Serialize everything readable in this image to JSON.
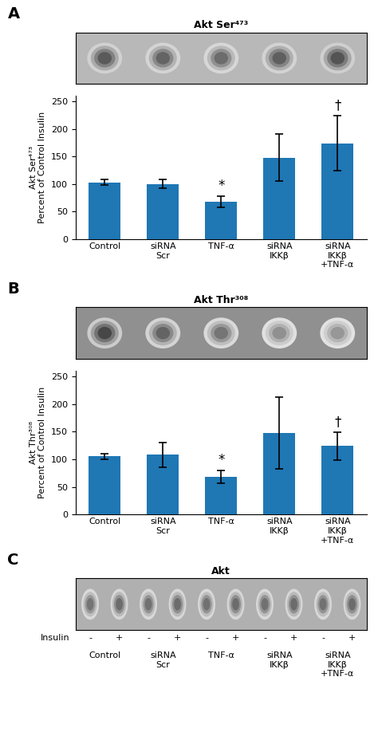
{
  "chart_data": [
    {
      "type": "blot",
      "panel_label": "A",
      "title": "Akt Ser⁴⁷³",
      "values": [
        0.72,
        0.68,
        0.65,
        0.7,
        0.74
      ],
      "color": "#b8b8b8"
    },
    {
      "type": "bar",
      "ylabel": "Akt Ser⁴⁷³\nPercent of Control Insulin",
      "categories": [
        "Control",
        "siRNA\nScr",
        "TNF-α",
        "siRNA\nIKKβ",
        "siRNA\nIKKβ\n+TNF-α"
      ],
      "values": [
        103,
        100,
        68,
        148,
        174
      ],
      "errors": [
        5,
        8,
        10,
        42,
        50
      ],
      "annotations": [
        null,
        null,
        "*",
        null,
        "†"
      ],
      "ylim": [
        0,
        260
      ],
      "yticks": [
        0,
        50,
        100,
        150,
        200,
        250
      ]
    },
    {
      "type": "blot",
      "panel_label": "B",
      "title": "Akt Thr³⁰⁸",
      "values": [
        0.78,
        0.68,
        0.62,
        0.52,
        0.5
      ],
      "color": "#909090"
    },
    {
      "type": "bar",
      "ylabel": "Akt Thr³⁰⁸\nPercent of Control Insulin",
      "categories": [
        "Control",
        "siRNA\nScr",
        "TNF-α",
        "siRNA\nIKKβ",
        "siRNA\nIKKβ\n+TNF-α"
      ],
      "values": [
        105,
        108,
        68,
        148,
        124
      ],
      "errors": [
        5,
        22,
        12,
        65,
        25
      ],
      "annotations": [
        null,
        null,
        "*",
        null,
        "†"
      ],
      "ylim": [
        0,
        260
      ],
      "yticks": [
        0,
        50,
        100,
        150,
        200,
        250
      ]
    },
    {
      "type": "blot",
      "panel_label": "C",
      "title": "Akt",
      "row_label": "Insulin",
      "categories": [
        "-",
        "+",
        "-",
        "+",
        "-",
        "+",
        "-",
        "+",
        "-",
        "+"
      ],
      "groups": [
        "Control",
        "siRNA\nScr",
        "TNF-α",
        "siRNA\nIKKβ",
        "siRNA\nIKKβ\n+TNF-α"
      ],
      "values": [
        0.62,
        0.65,
        0.63,
        0.65,
        0.63,
        0.65,
        0.63,
        0.65,
        0.63,
        0.65
      ],
      "color": "#b0b0b0"
    }
  ]
}
